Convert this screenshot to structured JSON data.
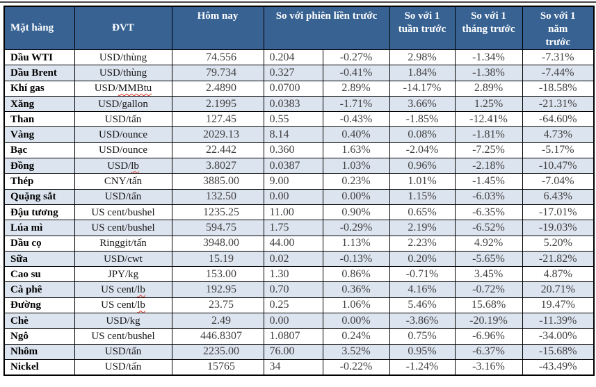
{
  "table": {
    "headers": {
      "commodity": "Mặt hàng",
      "unit": "ĐVT",
      "today": "Hôm nay",
      "vs_prev_session": "So với phiên liền trước",
      "vs_week": "So với 1\ntuần trước",
      "vs_month": "So với 1\ntháng trước",
      "vs_year": "So với 1\nnăm\ntrước"
    },
    "rows": [
      {
        "commodity": "Dầu WTI",
        "unit": "USD/thùng",
        "today": "74.556",
        "change_abs": "0.204",
        "change_pct": "-0.27%",
        "vs_week": "2.98%",
        "vs_month": "-1.34%",
        "vs_year": "-7.31%"
      },
      {
        "commodity": "Dầu Brent",
        "unit": "USD/thùng",
        "today": "79.734",
        "change_abs": "0.327",
        "change_pct": "-0.41%",
        "vs_week": "1.84%",
        "vs_month": "-1.38%",
        "vs_year": "-7.44%"
      },
      {
        "commodity": "Khí gas",
        "unit": "USD/MMBtu",
        "unit_flagged": "MMBtu",
        "today": "2.4890",
        "change_abs": "0.0700",
        "change_pct": "2.89%",
        "vs_week": "-14.17%",
        "vs_month": "2.89%",
        "vs_year": "-18.58%"
      },
      {
        "commodity": "Xăng",
        "unit": "USD/gallon",
        "today": "2.1995",
        "change_abs": "0.0383",
        "change_pct": "-1.71%",
        "vs_week": "3.66%",
        "vs_month": "1.25%",
        "vs_year": "-21.31%"
      },
      {
        "commodity": "Than",
        "unit": "USD/tấn",
        "today": "127.45",
        "change_abs": "0.55",
        "change_pct": "-0.43%",
        "vs_week": "-1.85%",
        "vs_month": "-12.41%",
        "vs_year": "-64.60%"
      },
      {
        "commodity": "Vàng",
        "unit": "USD/ounce",
        "today": "2029.13",
        "change_abs": "8.14",
        "change_pct": "0.40%",
        "vs_week": "0.08%",
        "vs_month": "-1.81%",
        "vs_year": "4.73%"
      },
      {
        "commodity": "Bạc",
        "unit": "USD/ounce",
        "today": "22.442",
        "change_abs": "0.360",
        "change_pct": "1.63%",
        "vs_week": "-2.04%",
        "vs_month": "-7.25%",
        "vs_year": "-5.17%"
      },
      {
        "commodity": "Đồng",
        "unit": "USD/lb",
        "unit_flagged": "lb",
        "today": "3.8027",
        "change_abs": "0.0387",
        "change_pct": "1.03%",
        "vs_week": "0.96%",
        "vs_month": "-2.18%",
        "vs_year": "-10.47%"
      },
      {
        "commodity": "Thép",
        "unit": "CNY/tấn",
        "today": "3885.00",
        "change_abs": "9.00",
        "change_pct": "0.23%",
        "vs_week": "1.01%",
        "vs_month": "-1.45%",
        "vs_year": "-7.04%"
      },
      {
        "commodity": "Quặng sắt",
        "unit": "USD/tấn",
        "today": "132.50",
        "change_abs": "0.00",
        "change_pct": "0.00%",
        "vs_week": "1.15%",
        "vs_month": "-6.03%",
        "vs_year": "6.43%"
      },
      {
        "commodity": "Đậu tương",
        "unit": "US cent/bushel",
        "today": "1235.25",
        "change_abs": "11.00",
        "change_pct": "0.90%",
        "vs_week": "0.65%",
        "vs_month": "-6.35%",
        "vs_year": "-17.01%"
      },
      {
        "commodity": "Lúa mì",
        "unit": "US cent/bushel",
        "today": "594.75",
        "change_abs": "1.75",
        "change_pct": "-0.29%",
        "vs_week": "2.19%",
        "vs_month": "-6.52%",
        "vs_year": "-19.03%"
      },
      {
        "commodity": "Dầu cọ",
        "unit": "Ringgit/tấn",
        "today": "3948.00",
        "change_abs": "44.00",
        "change_pct": "1.13%",
        "vs_week": "2.23%",
        "vs_month": "4.92%",
        "vs_year": "5.20%"
      },
      {
        "commodity": "Sữa",
        "unit": "USD/cwt",
        "today": "15.19",
        "change_abs": "0.02",
        "change_pct": "-0.13%",
        "vs_week": "0.20%",
        "vs_month": "-5.65%",
        "vs_year": "-21.82%"
      },
      {
        "commodity": "Cao su",
        "unit": "JPY/kg",
        "today": "153.00",
        "change_abs": "1.30",
        "change_pct": "0.86%",
        "vs_week": "-0.71%",
        "vs_month": "3.45%",
        "vs_year": "4.87%"
      },
      {
        "commodity": "Cà phê",
        "unit": "US cent/lb",
        "unit_flagged": "lb",
        "today": "192.95",
        "change_abs": "0.70",
        "change_pct": "0.36%",
        "vs_week": "4.16%",
        "vs_month": "-0.72%",
        "vs_year": "20.71%"
      },
      {
        "commodity": "Đường",
        "unit": "US cent/lb",
        "unit_flagged": "lb",
        "today": "23.75",
        "change_abs": "0.25",
        "change_pct": "1.06%",
        "vs_week": "5.46%",
        "vs_month": "15.68%",
        "vs_year": "19.47%"
      },
      {
        "commodity": "Chè",
        "unit": "USD/kg",
        "today": "2.49",
        "change_abs": "0.00",
        "change_pct": "0.00%",
        "vs_week": "-3.86%",
        "vs_month": "-20.19%",
        "vs_year": "-11.39%"
      },
      {
        "commodity": "Ngô",
        "unit": "US cent/bushel",
        "today": "446.8307",
        "change_abs": "1.0807",
        "change_pct": "0.24%",
        "vs_week": "0.75%",
        "vs_month": "-6.96%",
        "vs_year": "-34.00%"
      },
      {
        "commodity": "Nhôm",
        "unit": "USD/tấn",
        "today": "2235.00",
        "change_abs": "76.00",
        "change_pct": "3.52%",
        "vs_week": "0.95%",
        "vs_month": "-6.37%",
        "vs_year": "-15.68%"
      },
      {
        "commodity": "Nickel",
        "unit": "USD/tấn",
        "today": "15765",
        "change_abs": "34",
        "change_pct": "-0.22%",
        "vs_week": "-1.24%",
        "vs_month": "-3.16%",
        "vs_year": "-43.49%"
      }
    ],
    "colors": {
      "header_bg": "#376292",
      "header_text": "#FFFFFF",
      "row_even_bg": "#DCE4EF",
      "row_odd_bg": "#FFFFFF",
      "border": "#000000",
      "value_text": "#404040",
      "commodity_text": "#000000",
      "spellcheck_underline": "#E0311F"
    }
  }
}
